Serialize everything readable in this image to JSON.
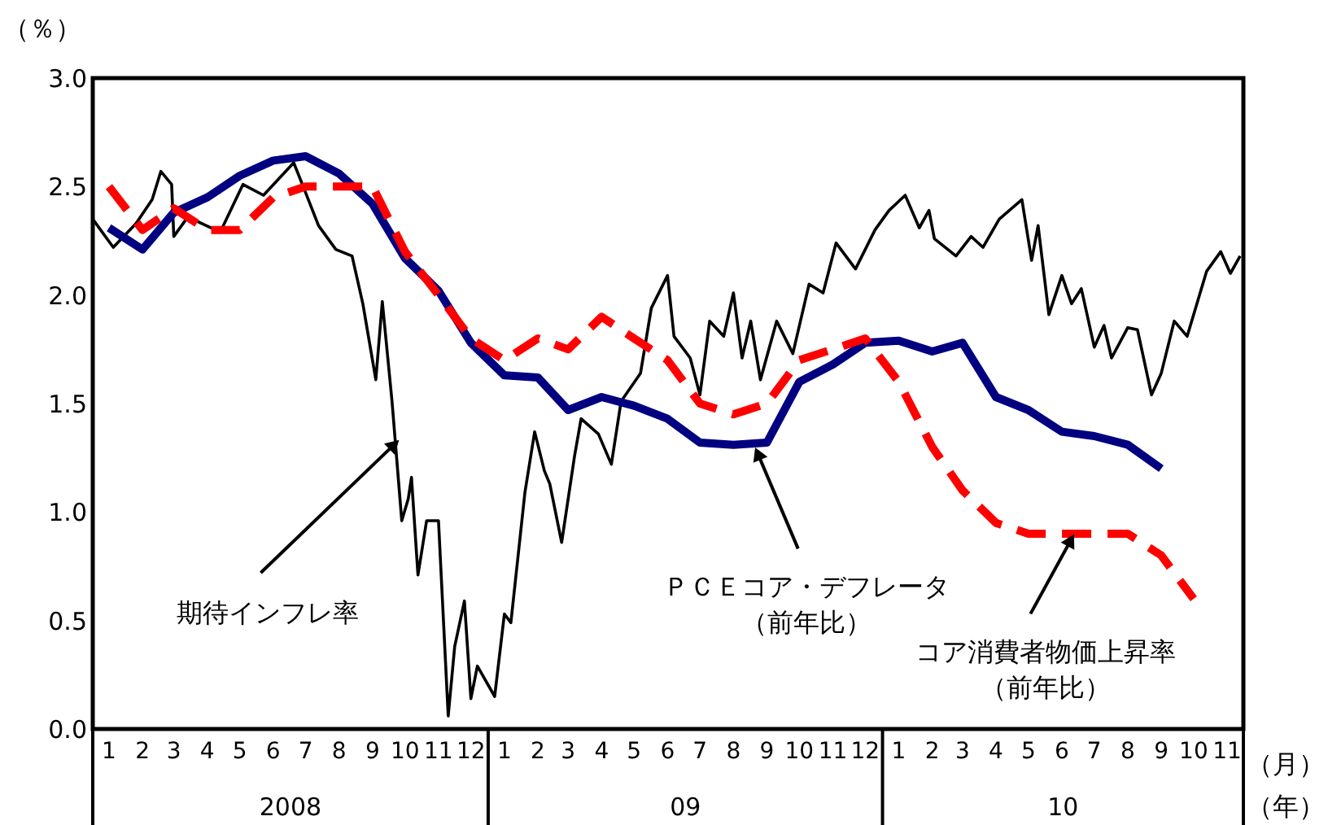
{
  "chart_data": {
    "type": "line",
    "ylabel": "（％）",
    "xlim": [
      "2008-01-01",
      "2010-12-01"
    ],
    "ylim": [
      0,
      3
    ],
    "yticks": [
      {
        "value": 0,
        "label": "0.0"
      },
      {
        "value": 0.5,
        "label": "0.5"
      },
      {
        "value": 1,
        "label": "1.0"
      },
      {
        "value": 1.5,
        "label": "1.5"
      },
      {
        "value": 2,
        "label": "2.0"
      },
      {
        "value": 2.5,
        "label": "2.5"
      },
      {
        "value": 3,
        "label": "3.0"
      }
    ],
    "xticks": [
      {
        "value": "2008-01-16",
        "label": "1"
      },
      {
        "value": "2008-02-16",
        "label": "2"
      },
      {
        "value": "2008-03-16",
        "label": "3"
      },
      {
        "value": "2008-04-16",
        "label": "4"
      },
      {
        "value": "2008-05-16",
        "label": "5"
      },
      {
        "value": "2008-06-16",
        "label": "6"
      },
      {
        "value": "2008-07-16",
        "label": "7"
      },
      {
        "value": "2008-08-16",
        "label": "8"
      },
      {
        "value": "2008-09-16",
        "label": "9"
      },
      {
        "value": "2008-10-16",
        "label": "10"
      },
      {
        "value": "2008-11-16",
        "label": "11"
      },
      {
        "value": "2008-12-16",
        "label": "12"
      },
      {
        "value": "2009-01-16",
        "label": "1"
      },
      {
        "value": "2009-02-16",
        "label": "2"
      },
      {
        "value": "2009-03-16",
        "label": "3"
      },
      {
        "value": "2009-04-16",
        "label": "4"
      },
      {
        "value": "2009-05-16",
        "label": "5"
      },
      {
        "value": "2009-06-16",
        "label": "6"
      },
      {
        "value": "2009-07-16",
        "label": "7"
      },
      {
        "value": "2009-08-16",
        "label": "8"
      },
      {
        "value": "2009-09-16",
        "label": "9"
      },
      {
        "value": "2009-10-16",
        "label": "10"
      },
      {
        "value": "2009-11-16",
        "label": "11"
      },
      {
        "value": "2009-12-16",
        "label": "12"
      },
      {
        "value": "2010-01-16",
        "label": "1"
      },
      {
        "value": "2010-02-16",
        "label": "2"
      },
      {
        "value": "2010-03-16",
        "label": "3"
      },
      {
        "value": "2010-04-16",
        "label": "4"
      },
      {
        "value": "2010-05-16",
        "label": "5"
      },
      {
        "value": "2010-06-16",
        "label": "6"
      },
      {
        "value": "2010-07-16",
        "label": "7"
      },
      {
        "value": "2010-08-16",
        "label": "8"
      },
      {
        "value": "2010-09-16",
        "label": "9"
      },
      {
        "value": "2010-10-16",
        "label": "10"
      },
      {
        "value": "2010-11-16",
        "label": "11"
      }
    ],
    "annotations": [
      "2008",
      "09",
      "10",
      "（月）",
      "（年）"
    ],
    "grid": false,
    "series": [
      {
        "name": "期待インフレ率",
        "color": "#000000",
        "line_style": "solid",
        "x": [
          "2008-01-01",
          "2008-01-20",
          "2008-02-10",
          "2008-02-25",
          "2008-03-04",
          "2008-03-14",
          "2008-03-16",
          "2008-03-29",
          "2008-04-28",
          "2008-05-19",
          "2008-06-07",
          "2008-07-05",
          "2008-07-13",
          "2008-07-28",
          "2008-08-13",
          "2008-08-28",
          "2008-09-07",
          "2008-09-19",
          "2008-09-25",
          "2008-10-04",
          "2008-10-13",
          "2008-10-19",
          "2008-10-22",
          "2008-10-28",
          "2008-11-05",
          "2008-11-16",
          "2008-11-25",
          "2008-12-01",
          "2008-12-10",
          "2008-12-16",
          "2008-12-22",
          "2009-01-07",
          "2009-01-16",
          "2009-01-22",
          "2009-02-04",
          "2009-02-13",
          "2009-02-22",
          "2009-02-27",
          "2009-03-10",
          "2009-03-22",
          "2009-03-28",
          "2009-04-13",
          "2009-04-25",
          "2009-05-04",
          "2009-05-22",
          "2009-06-01",
          "2009-06-16",
          "2009-06-22",
          "2009-07-07",
          "2009-07-16",
          "2009-07-25",
          "2009-08-07",
          "2009-08-16",
          "2009-08-24",
          "2009-09-01",
          "2009-09-10",
          "2009-09-25",
          "2009-10-10",
          "2009-10-25",
          "2009-11-07",
          "2009-11-19",
          "2009-12-07",
          "2009-12-25",
          "2010-01-07",
          "2010-01-22",
          "2010-02-04",
          "2010-02-13",
          "2010-02-18",
          "2010-03-10",
          "2010-03-24",
          "2010-04-04",
          "2010-04-19",
          "2010-05-10",
          "2010-05-19",
          "2010-05-25",
          "2010-06-04",
          "2010-06-16",
          "2010-06-25",
          "2010-07-04",
          "2010-07-16",
          "2010-07-25",
          "2010-08-01",
          "2010-08-16",
          "2010-08-25",
          "2010-09-07",
          "2010-09-16",
          "2010-09-28",
          "2010-10-10",
          "2010-10-19",
          "2010-10-28",
          "2010-11-10",
          "2010-11-19",
          "2010-11-28"
        ],
        "values": [
          2.35,
          2.22,
          2.33,
          2.44,
          2.57,
          2.51,
          2.27,
          2.36,
          2.29,
          2.51,
          2.46,
          2.61,
          2.51,
          2.32,
          2.21,
          2.18,
          1.96,
          1.61,
          1.97,
          1.51,
          0.96,
          1.06,
          1.16,
          0.71,
          0.96,
          0.96,
          0.06,
          0.38,
          0.59,
          0.14,
          0.29,
          0.15,
          0.53,
          0.49,
          1.09,
          1.37,
          1.19,
          1.13,
          0.86,
          1.26,
          1.43,
          1.36,
          1.22,
          1.51,
          1.64,
          1.94,
          2.09,
          1.81,
          1.71,
          1.54,
          1.88,
          1.81,
          2.01,
          1.71,
          1.88,
          1.61,
          1.88,
          1.73,
          2.05,
          2.01,
          2.24,
          2.12,
          2.3,
          2.39,
          2.46,
          2.31,
          2.39,
          2.26,
          2.18,
          2.27,
          2.22,
          2.35,
          2.44,
          2.16,
          2.32,
          1.91,
          2.09,
          1.96,
          2.03,
          1.76,
          1.86,
          1.71,
          1.85,
          1.84,
          1.54,
          1.64,
          1.88,
          1.81,
          1.96,
          2.11,
          2.2,
          2.1,
          2.18
        ]
      },
      {
        "name": "ＰＣＥコア・デフレータ（前年比）",
        "color": "#000080",
        "line_style": "solid",
        "x": [
          "2008-01-16",
          "2008-02-16",
          "2008-03-16",
          "2008-04-16",
          "2008-05-16",
          "2008-06-16",
          "2008-07-16",
          "2008-08-16",
          "2008-09-16",
          "2008-10-16",
          "2008-11-16",
          "2008-12-16",
          "2009-01-16",
          "2009-02-16",
          "2009-03-16",
          "2009-04-16",
          "2009-05-16",
          "2009-06-16",
          "2009-07-16",
          "2009-08-16",
          "2009-09-16",
          "2009-10-16",
          "2009-11-16",
          "2009-12-16",
          "2010-01-16",
          "2010-02-16",
          "2010-03-16",
          "2010-04-16",
          "2010-05-16",
          "2010-06-16",
          "2010-07-16",
          "2010-08-16",
          "2010-09-16"
        ],
        "values": [
          2.31,
          2.21,
          2.38,
          2.45,
          2.55,
          2.62,
          2.64,
          2.56,
          2.42,
          2.17,
          2.02,
          1.78,
          1.63,
          1.62,
          1.47,
          1.53,
          1.49,
          1.43,
          1.32,
          1.31,
          1.32,
          1.6,
          1.68,
          1.78,
          1.79,
          1.74,
          1.78,
          1.53,
          1.47,
          1.37,
          1.35,
          1.31,
          1.2
        ]
      },
      {
        "name": "コア消費者物価上昇率（前年比）",
        "color": "#ff0000",
        "line_style": "dashed",
        "x": [
          "2008-01-16",
          "2008-02-16",
          "2008-03-16",
          "2008-04-16",
          "2008-05-16",
          "2008-06-16",
          "2008-07-16",
          "2008-08-16",
          "2008-09-16",
          "2008-10-16",
          "2008-11-16",
          "2008-12-16",
          "2009-01-16",
          "2009-02-16",
          "2009-03-16",
          "2009-04-16",
          "2009-05-16",
          "2009-06-16",
          "2009-07-16",
          "2009-08-16",
          "2009-09-16",
          "2009-10-16",
          "2009-11-16",
          "2009-12-16",
          "2010-01-16",
          "2010-02-16",
          "2010-03-16",
          "2010-04-16",
          "2010-05-16",
          "2010-06-16",
          "2010-07-16",
          "2010-08-16",
          "2010-09-16",
          "2010-10-16"
        ],
        "values": [
          2.5,
          2.3,
          2.4,
          2.3,
          2.3,
          2.45,
          2.5,
          2.5,
          2.5,
          2.2,
          2.0,
          1.8,
          1.7,
          1.8,
          1.75,
          1.9,
          1.8,
          1.7,
          1.5,
          1.45,
          1.5,
          1.7,
          1.75,
          1.8,
          1.6,
          1.3,
          1.1,
          0.95,
          0.9,
          0.9,
          0.9,
          0.9,
          0.8,
          0.6
        ]
      }
    ]
  }
}
